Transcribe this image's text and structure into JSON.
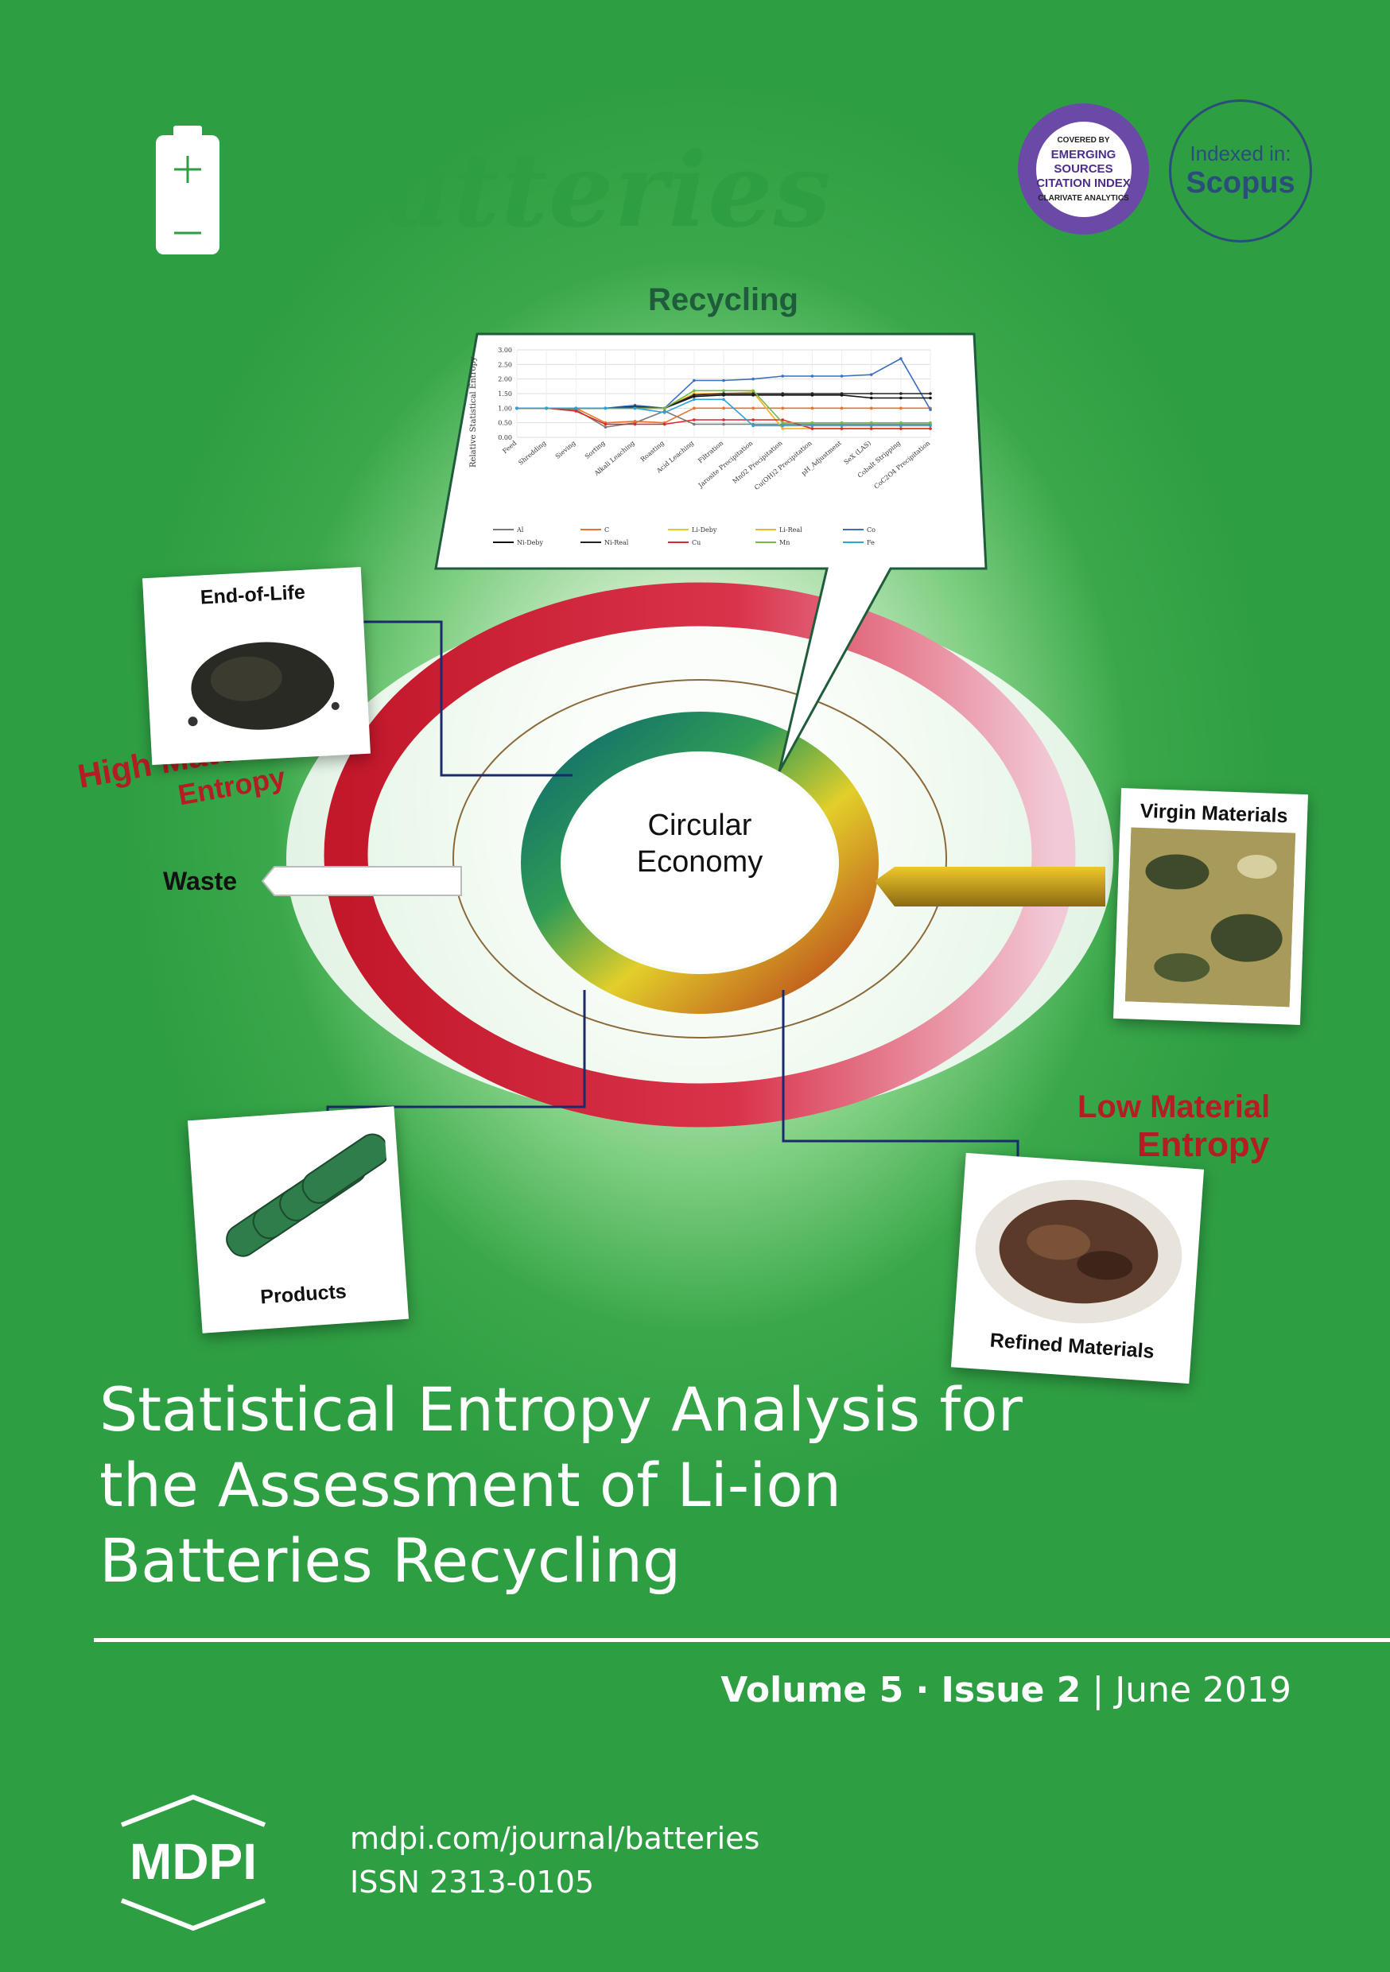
{
  "journal": {
    "name": "batteries",
    "indexing": {
      "esci_top": "COVERED BY",
      "esci_main": [
        "EMERGING",
        "SOURCES",
        "CITATION INDEX"
      ],
      "esci_bottom": "CLARIVATE ANALYTICS",
      "scopus_prefix": "Indexed in:",
      "scopus_name": "Scopus"
    }
  },
  "graphic": {
    "recycling_label": "Recycling",
    "center_label": [
      "Circular",
      "Economy"
    ],
    "waste_label": "Waste",
    "high_entropy": [
      "High Material",
      "Entropy"
    ],
    "low_entropy": [
      "Low Material",
      "Entropy"
    ],
    "photos": {
      "end_of_life": "End-of-Life",
      "virgin": "Virgin Materials",
      "products": "Products",
      "refined": "Refined Materials"
    }
  },
  "chart_data": {
    "type": "line",
    "ylabel": "Relative Statistical Entropy",
    "ylim": [
      0,
      3.0
    ],
    "yticks": [
      "0.00",
      "0.50",
      "1.00",
      "1.50",
      "2.00",
      "2.50",
      "3.00"
    ],
    "categories": [
      "Feed",
      "Shredding",
      "Sieving",
      "Sorting",
      "Alkali Leaching",
      "Roasting",
      "Acid Leaching",
      "Filtration",
      "Jarosite Precipitation",
      "Mn02 Precipitation",
      "Cu(OH)2 Precipitation",
      "pH_Adjustment",
      "SeX (LAS)",
      "Cobalt Stripping",
      "CoC2O4 Precipitation"
    ],
    "legend": [
      "Al",
      "C",
      "Li-Deby",
      "Li-Real",
      "Co",
      "Ni-Deby",
      "Ni-Real",
      "Cu",
      "Mn",
      "Fe"
    ],
    "series": [
      {
        "name": "Al",
        "color": "#7a7a7a",
        "values": [
          1.0,
          1.0,
          0.95,
          0.35,
          0.5,
          0.9,
          0.45,
          0.45,
          0.45,
          0.45,
          0.45,
          0.45,
          0.45,
          0.45,
          0.45
        ]
      },
      {
        "name": "C",
        "color": "#e8742a",
        "values": [
          1.0,
          1.0,
          1.0,
          0.5,
          0.55,
          0.5,
          1.0,
          1.0,
          1.0,
          1.0,
          1.0,
          1.0,
          1.0,
          1.0,
          1.0
        ]
      },
      {
        "name": "Li-Deby",
        "color": "#e6c832",
        "values": [
          1.0,
          1.0,
          1.0,
          1.0,
          1.0,
          1.0,
          1.5,
          1.5,
          1.55,
          0.3,
          0.3,
          0.3,
          0.3,
          0.3,
          0.3
        ]
      },
      {
        "name": "Li-Real",
        "color": "#f2b233",
        "values": [
          1.0,
          1.0,
          1.0,
          1.0,
          1.0,
          1.0,
          1.5,
          1.5,
          1.55,
          0.3,
          0.3,
          0.3,
          0.3,
          0.3,
          0.3
        ]
      },
      {
        "name": "Co",
        "color": "#3a6fc4",
        "values": [
          1.0,
          1.0,
          1.0,
          1.0,
          1.1,
          1.0,
          1.95,
          1.95,
          2.0,
          2.1,
          2.1,
          2.1,
          2.15,
          2.7,
          0.95
        ]
      },
      {
        "name": "Ni-Deby",
        "color": "#111111",
        "values": [
          1.0,
          1.0,
          1.0,
          1.0,
          1.0,
          1.0,
          1.4,
          1.45,
          1.45,
          1.45,
          1.45,
          1.45,
          1.35,
          1.35,
          1.35
        ]
      },
      {
        "name": "Ni-Real",
        "color": "#222222",
        "values": [
          1.0,
          1.0,
          1.0,
          1.0,
          1.05,
          1.0,
          1.45,
          1.5,
          1.5,
          1.5,
          1.5,
          1.5,
          1.5,
          1.5,
          1.5
        ]
      },
      {
        "name": "Cu",
        "color": "#d82a2a",
        "values": [
          1.0,
          1.0,
          0.9,
          0.45,
          0.45,
          0.45,
          0.6,
          0.6,
          0.6,
          0.6,
          0.3,
          0.3,
          0.3,
          0.3,
          0.3
        ]
      },
      {
        "name": "Mn",
        "color": "#78b843",
        "values": [
          1.0,
          1.0,
          1.0,
          1.0,
          1.0,
          1.0,
          1.6,
          1.6,
          1.6,
          0.5,
          0.5,
          0.5,
          0.5,
          0.5,
          0.5
        ]
      },
      {
        "name": "Fe",
        "color": "#2aa3d8",
        "values": [
          1.0,
          1.0,
          1.0,
          1.0,
          1.0,
          0.85,
          1.3,
          1.3,
          0.4,
          0.4,
          0.4,
          0.4,
          0.4,
          0.4,
          0.4
        ]
      }
    ]
  },
  "title": [
    "Statistical Entropy Analysis for",
    "the Assessment of Li-ion",
    "Batteries Recycling"
  ],
  "issue": {
    "volume": "Volume 5",
    "sep1": " · ",
    "issue": "Issue 2",
    "sep2": " | ",
    "date": "June 2019"
  },
  "publisher": {
    "name": "MDPI",
    "url": "mdpi.com/journal/batteries",
    "issn": "ISSN 2313-0105"
  }
}
